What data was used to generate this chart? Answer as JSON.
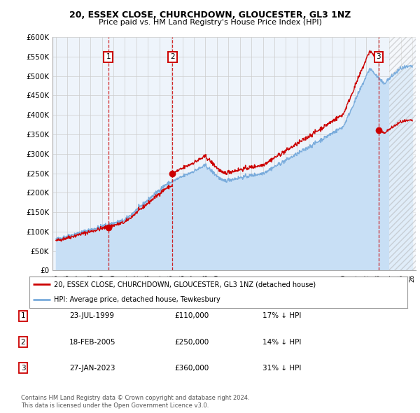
{
  "title1": "20, ESSEX CLOSE, CHURCHDOWN, GLOUCESTER, GL3 1NZ",
  "title2": "Price paid vs. HM Land Registry's House Price Index (HPI)",
  "ylabel_ticks": [
    "£0",
    "£50K",
    "£100K",
    "£150K",
    "£200K",
    "£250K",
    "£300K",
    "£350K",
    "£400K",
    "£450K",
    "£500K",
    "£550K",
    "£600K"
  ],
  "ytick_values": [
    0,
    50000,
    100000,
    150000,
    200000,
    250000,
    300000,
    350000,
    400000,
    450000,
    500000,
    550000,
    600000
  ],
  "xlim_start": 1994.7,
  "xlim_end": 2026.3,
  "ylim_min": 0,
  "ylim_max": 600000,
  "sale1_date": 1999.55,
  "sale1_price": 110000,
  "sale2_date": 2005.13,
  "sale2_price": 250000,
  "sale3_date": 2023.07,
  "sale3_price": 360000,
  "legend_line1": "20, ESSEX CLOSE, CHURCHDOWN, GLOUCESTER, GL3 1NZ (detached house)",
  "legend_line2": "HPI: Average price, detached house, Tewkesbury",
  "table_row1": [
    "1",
    "23-JUL-1999",
    "£110,000",
    "17% ↓ HPI"
  ],
  "table_row2": [
    "2",
    "18-FEB-2005",
    "£250,000",
    "14% ↓ HPI"
  ],
  "table_row3": [
    "3",
    "27-JAN-2023",
    "£360,000",
    "31% ↓ HPI"
  ],
  "footer1": "Contains HM Land Registry data © Crown copyright and database right 2024.",
  "footer2": "This data is licensed under the Open Government Licence v3.0.",
  "sale_color": "#cc0000",
  "hpi_color": "#7aacdc",
  "hpi_fill_color": "#c8dff5",
  "grid_color": "#cccccc",
  "bg_color": "#eef4fb",
  "label_box_color": "#cc0000",
  "hatch_start": 2024.0,
  "future_hatch_color": "#aaaaaa"
}
